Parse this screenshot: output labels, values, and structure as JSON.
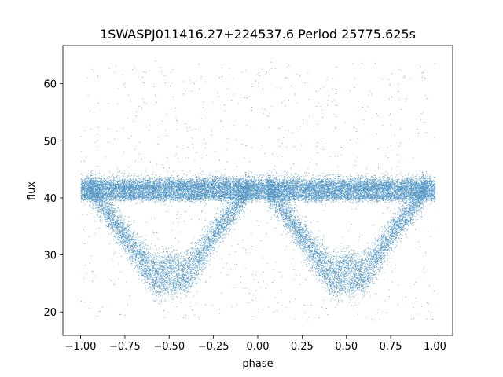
{
  "chart_data": {
    "type": "scatter",
    "title": "1SWASPJ011416.27+224537.6 Period 25775.625s",
    "xlabel": "phase",
    "ylabel": "flux",
    "xlim": [
      -1.1,
      1.1
    ],
    "ylim": [
      15.9,
      66.7
    ],
    "xticks": [
      -1.0,
      -0.75,
      -0.5,
      -0.25,
      0.0,
      0.25,
      0.5,
      0.75,
      1.0
    ],
    "xtick_labels": [
      "−1.00",
      "−0.75",
      "−0.50",
      "−0.25",
      "0.00",
      "0.25",
      "0.50",
      "0.75",
      "1.00"
    ],
    "yticks": [
      20,
      30,
      40,
      50,
      60
    ],
    "ytick_labels": [
      "20",
      "30",
      "40",
      "50",
      "60"
    ],
    "grid": false,
    "legend": "none",
    "marker_color": "#1f77b4",
    "series": [
      {
        "description_points": "phase-folded light curve; dense band and eclipse dips",
        "baseline_band": {
          "x_range": [
            -1.0,
            1.0
          ],
          "y_center": 41.8,
          "y_spread": 1.6
        },
        "secondary_band": {
          "x_range": [
            -1.0,
            1.0
          ],
          "y_center": 40.2,
          "y_spread": 0.8
        },
        "eclipse_centers": [
          -0.5,
          0.5
        ],
        "eclipse_minimum": 25.0,
        "eclipse_half_width": 0.45,
        "scatter_range": [
          18.5,
          64.0
        ]
      }
    ]
  }
}
